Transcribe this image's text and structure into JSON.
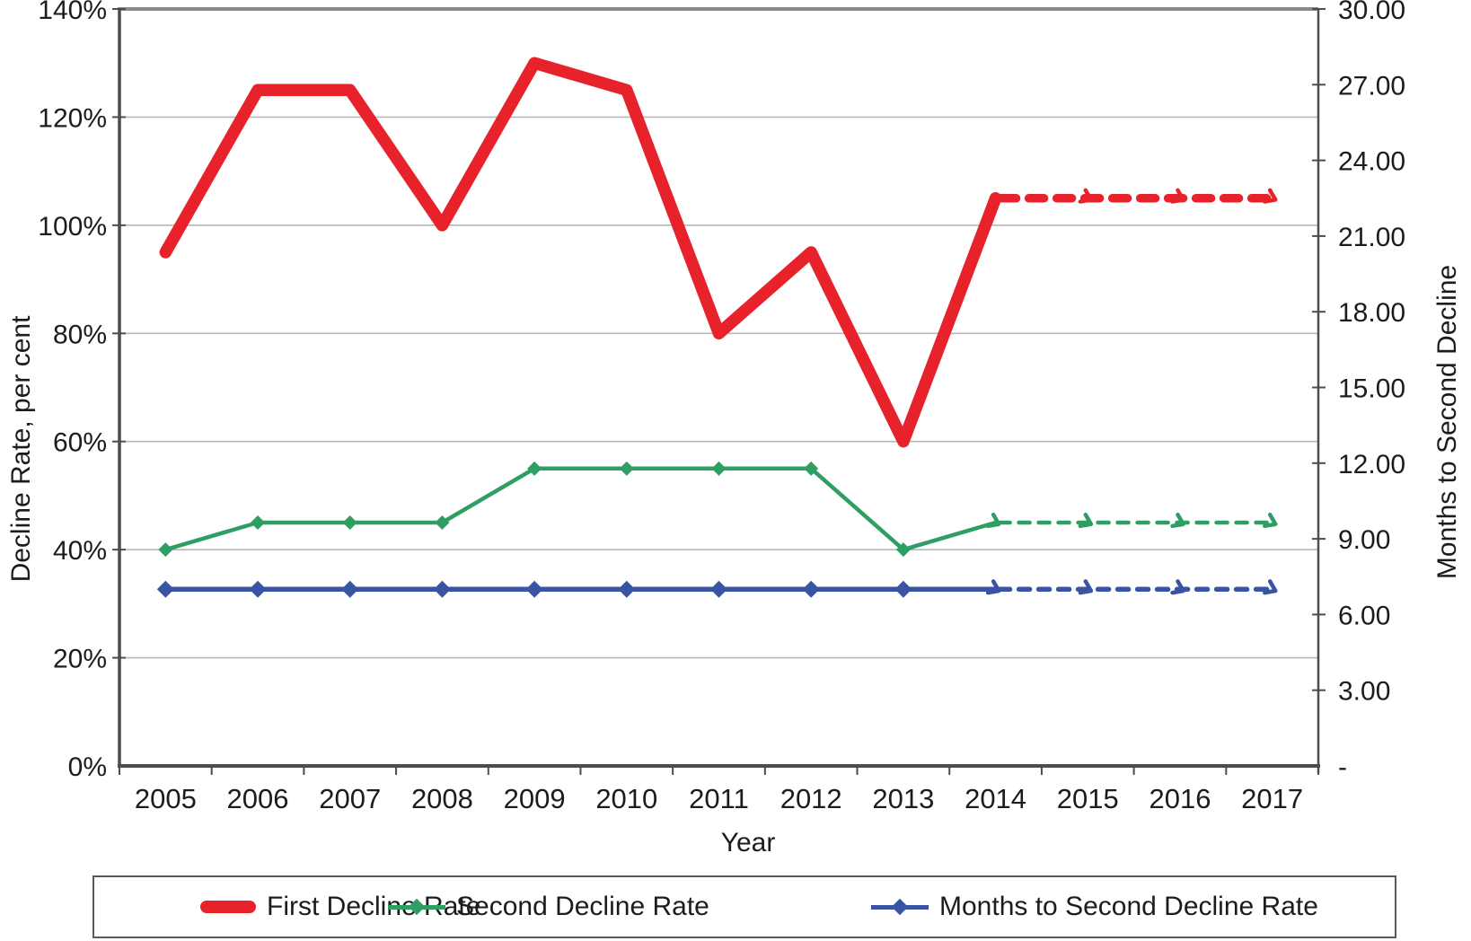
{
  "chart_data": {
    "type": "line",
    "title": "",
    "xlabel": "Year",
    "ylabel_left": "Decline Rate, per cent",
    "ylabel_right": "Months to Second Decline",
    "categories": [
      "2005",
      "2006",
      "2007",
      "2008",
      "2009",
      "2010",
      "2011",
      "2012",
      "2013",
      "2014",
      "2015",
      "2016",
      "2017"
    ],
    "left_axis": {
      "min": 0,
      "max": 140,
      "tick_step": 20,
      "tick_labels": [
        "0%",
        "20%",
        "40%",
        "60%",
        "80%",
        "100%",
        "120%",
        "140%"
      ]
    },
    "right_axis": {
      "min": 0,
      "max": 30,
      "tick_step": 3,
      "tick_labels": [
        "-",
        "3.00",
        "6.00",
        "9.00",
        "12.00",
        "15.00",
        "18.00",
        "21.00",
        "24.00",
        "27.00",
        "30.00"
      ]
    },
    "grid": true,
    "legend_position": "bottom",
    "projection_start_index": 9,
    "series": [
      {
        "name": "First Decline Rate",
        "axis": "left",
        "color": "#e8222b",
        "line_width": 13.5,
        "dash_width": 9.5,
        "marker": "none",
        "marker_size": 0,
        "values": [
          95,
          125,
          125,
          100,
          130,
          125,
          80,
          95,
          60,
          105,
          105,
          105,
          105
        ]
      },
      {
        "name": "Second Decline Rate",
        "axis": "left",
        "color": "#2f9e63",
        "line_width": 4.5,
        "dash_width": 4.5,
        "marker": "diamond",
        "marker_size": 8,
        "values": [
          40,
          45,
          45,
          45,
          55,
          55,
          55,
          55,
          40,
          45,
          45,
          45,
          45
        ]
      },
      {
        "name": "Months to Second Decline Rate",
        "axis": "right",
        "color": "#3a54a4",
        "line_width": 5.5,
        "dash_width": 5.5,
        "marker": "diamond",
        "marker_size": 9.5,
        "values": [
          7.0,
          7.0,
          7.0,
          7.0,
          7.0,
          7.0,
          7.0,
          7.0,
          7.0,
          7.0,
          7.0,
          7.0,
          7.0
        ]
      }
    ],
    "colors": {
      "gridline": "#b7b7b7",
      "plot_top_border": "#8a8a8a",
      "axis_line": "#4d4d4d",
      "text": "#1c1c1c"
    }
  }
}
